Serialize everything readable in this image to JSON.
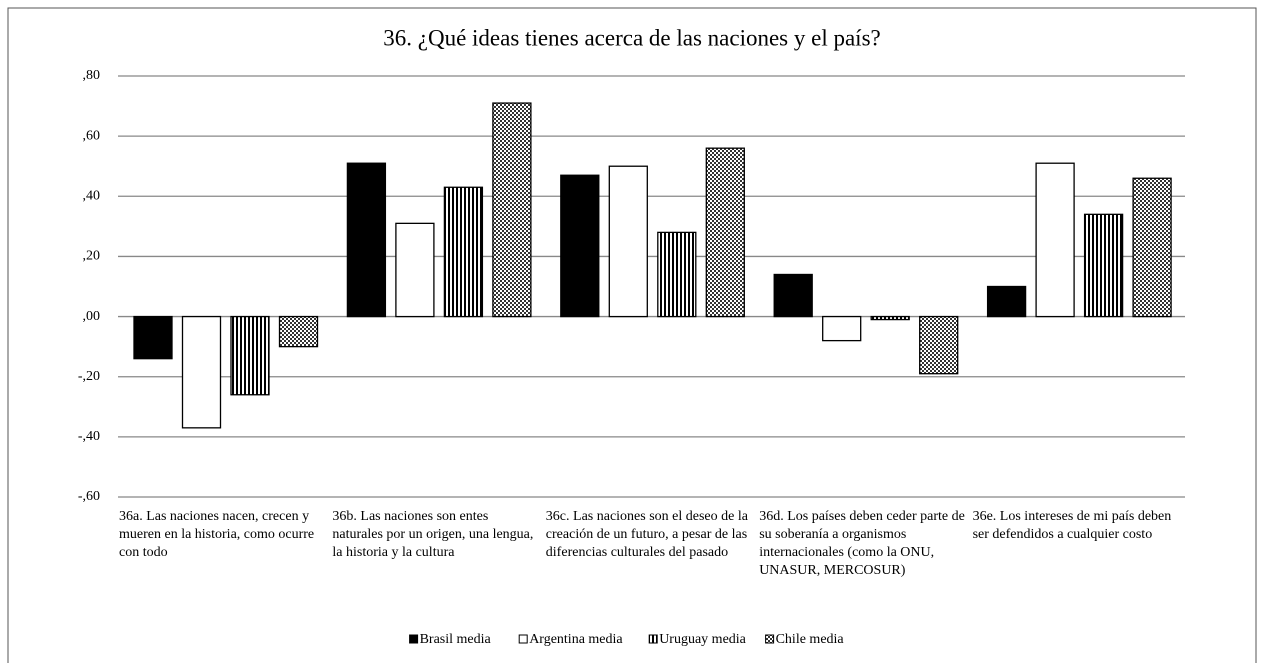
{
  "chart_data": {
    "type": "bar",
    "title": "36. ¿Qué ideas tienes acerca de las naciones y el país?",
    "categories": [
      "36a. Las naciones nacen, crecen y mueren en la historia, como ocurre con todo",
      "36b. Las naciones son entes naturales por un origen,  una lengua, la historia y la cultura",
      "36c. Las naciones son el deseo de la creación de un futuro, a pesar de las diferencias culturales del pasado",
      "36d. Los países deben ceder parte de su soberanía a organismos internacionales (como la ONU, UNASUR, MERCOSUR)",
      "36e. Los intereses de mi país deben ser defendidos a cualquier costo"
    ],
    "series": [
      {
        "name": "Brasil media",
        "color": "#000000",
        "pattern": "solid",
        "values": [
          -0.14,
          0.51,
          0.47,
          0.14,
          0.1
        ]
      },
      {
        "name": "Argentina media",
        "color": "#ffffff",
        "pattern": "solid",
        "values": [
          -0.37,
          0.31,
          0.5,
          -0.08,
          0.51
        ]
      },
      {
        "name": "Uruguay media",
        "color": "#000000",
        "pattern": "vertical-lines",
        "values": [
          -0.26,
          0.43,
          0.28,
          -0.01,
          0.34
        ]
      },
      {
        "name": "Chile media",
        "color": "#000000",
        "pattern": "checker",
        "values": [
          -0.1,
          0.71,
          0.56,
          -0.19,
          0.46
        ]
      }
    ],
    "ylim": [
      -0.6,
      0.8
    ],
    "yticks": [
      {
        "value": -0.6,
        "label": "-,60"
      },
      {
        "value": -0.4,
        "label": "-,40"
      },
      {
        "value": -0.2,
        "label": "-,20"
      },
      {
        "value": 0,
        "label": ",00"
      },
      {
        "value": 0.2,
        "label": ",20"
      },
      {
        "value": 0.4,
        "label": ",40"
      },
      {
        "value": 0.6,
        "label": ",60"
      },
      {
        "value": 0.8,
        "label": ",80"
      }
    ],
    "grid": true,
    "legend": "bottom"
  }
}
